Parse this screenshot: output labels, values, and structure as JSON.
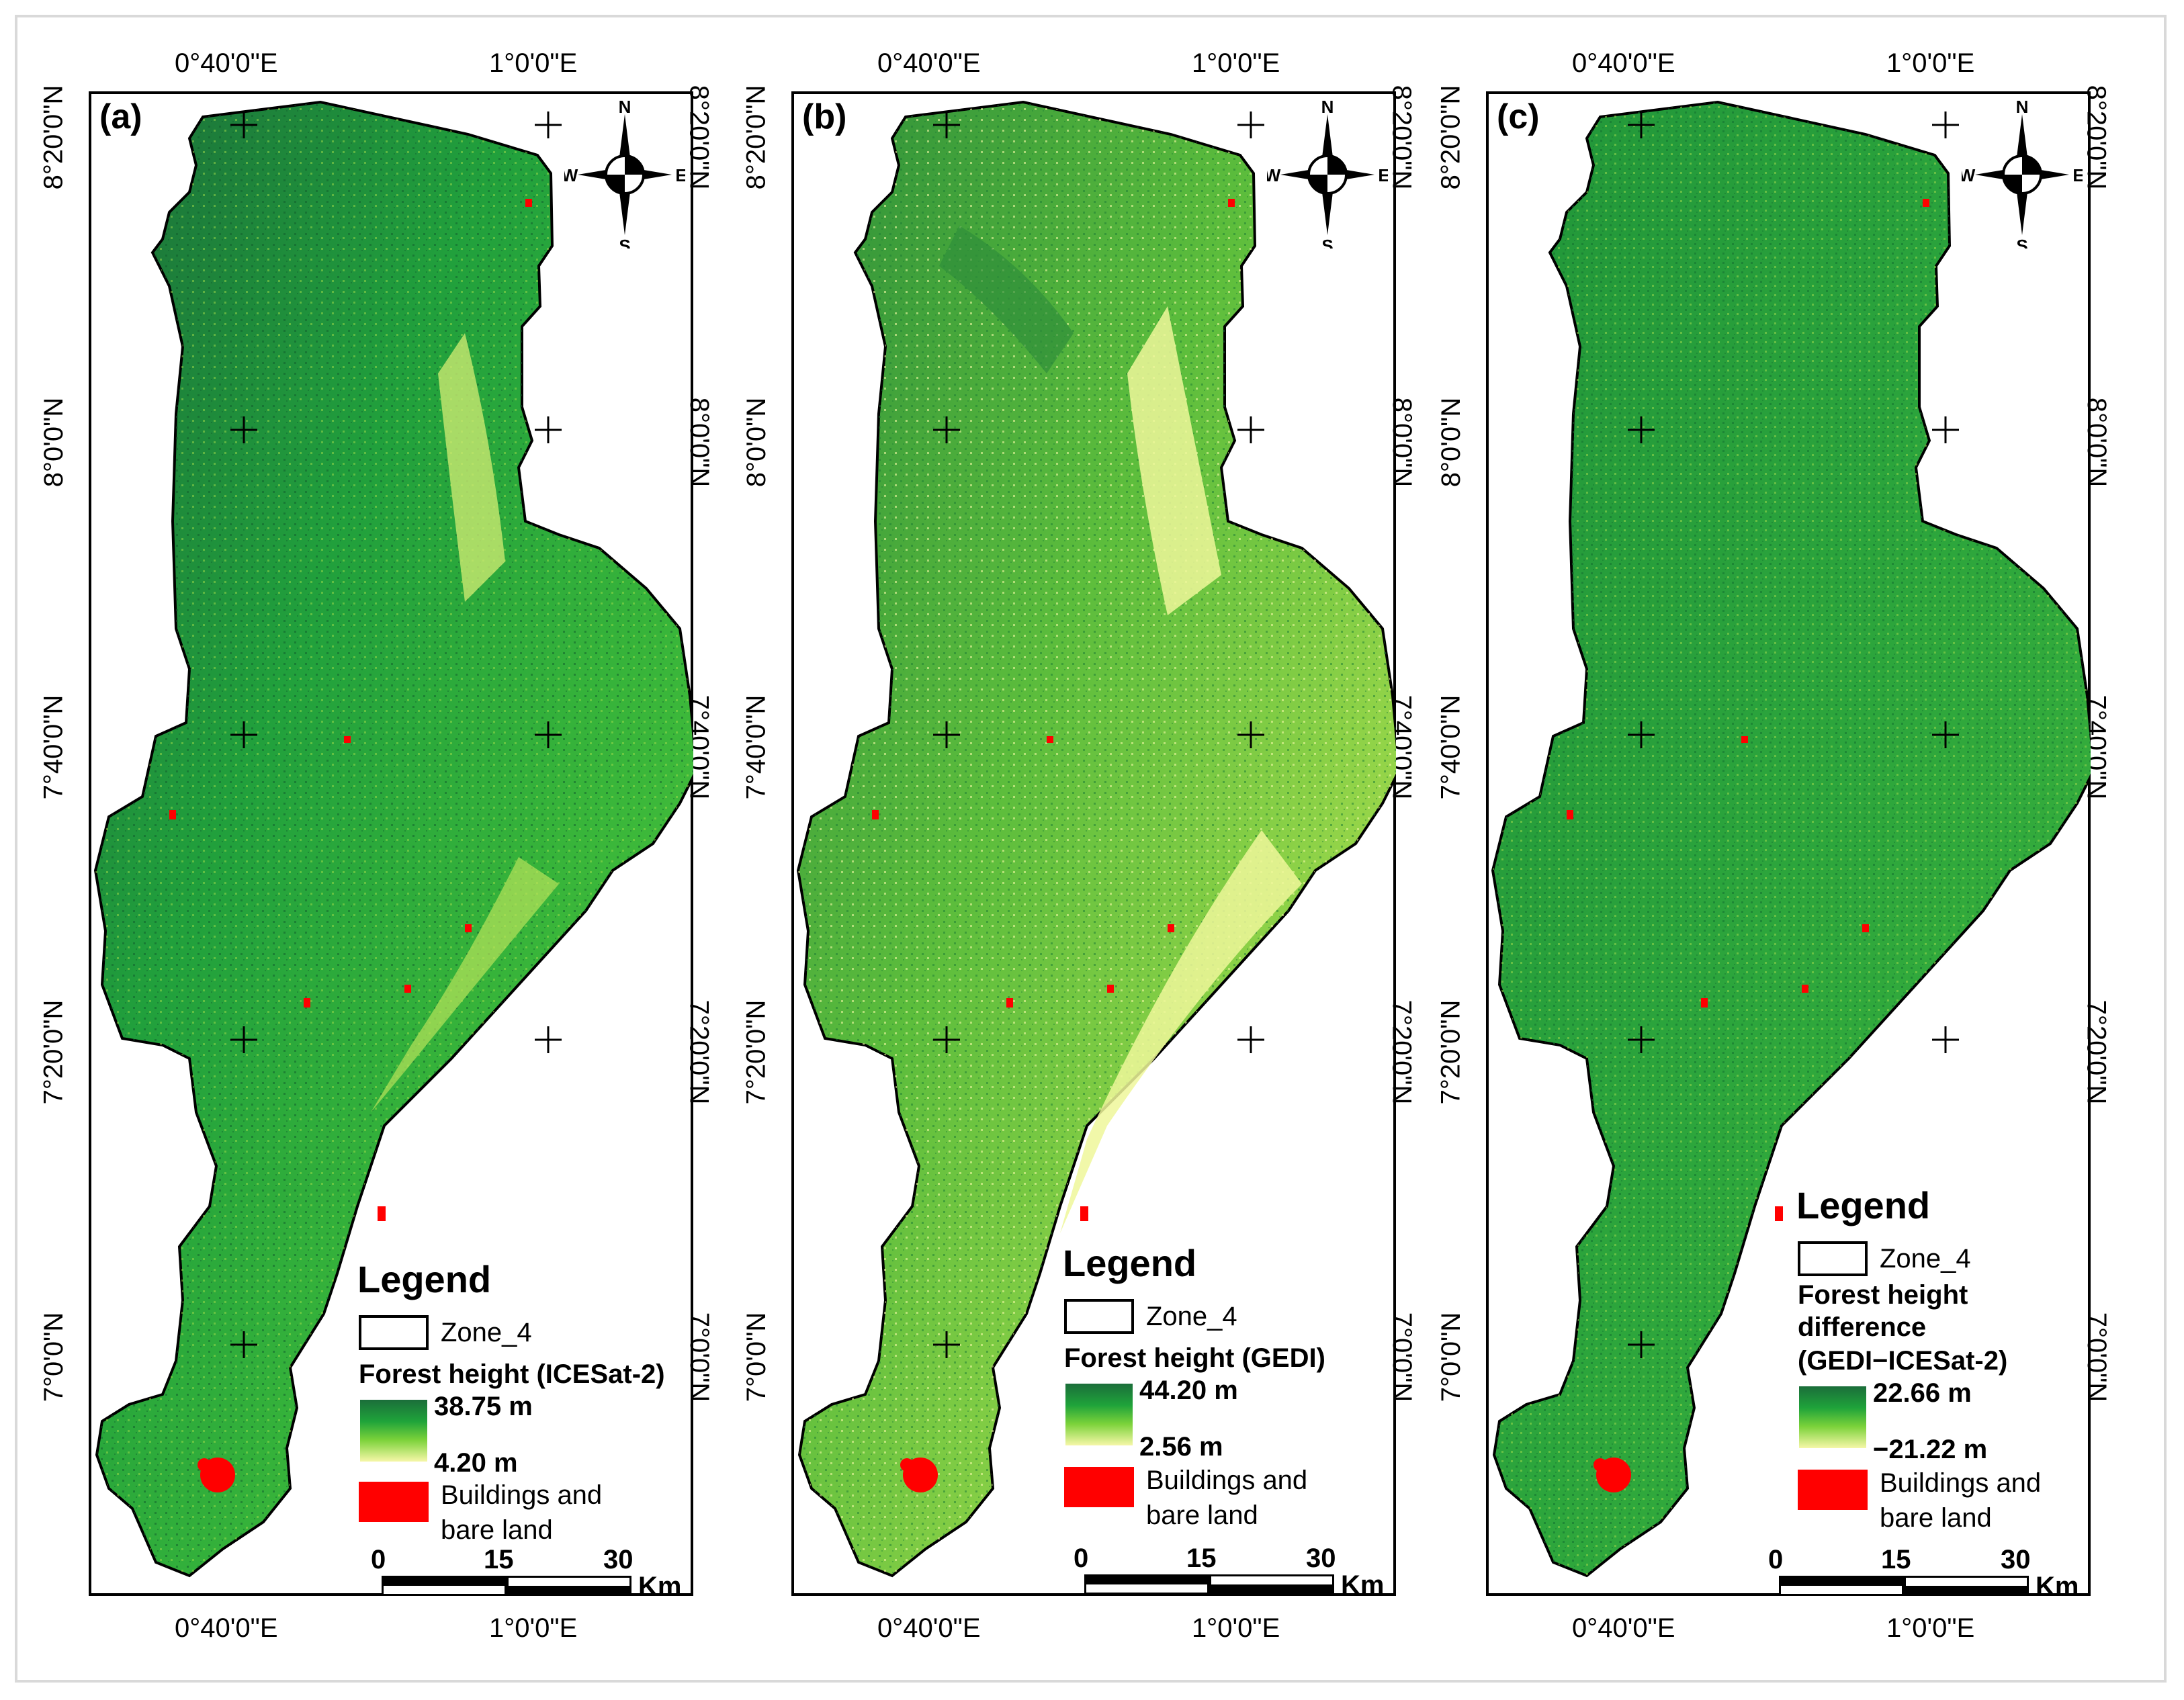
{
  "panels": [
    {
      "id": "a",
      "label": "(a)",
      "legend_title": "Legend",
      "zone_label": "Zone_4",
      "variable_label": "Forest height (ICESat-2)",
      "max_label": "38.75 m",
      "min_label": "4.20 m",
      "buildings_label_1": "Buildings and",
      "buildings_label_2": "bare land"
    },
    {
      "id": "b",
      "label": "(b)",
      "legend_title": "Legend",
      "zone_label": "Zone_4",
      "variable_label": "Forest height (GEDI)",
      "max_label": "44.20 m",
      "min_label": "2.56 m",
      "buildings_label_1": "Buildings and",
      "buildings_label_2": "bare land"
    },
    {
      "id": "c",
      "label": "(c)",
      "legend_title": "Legend",
      "zone_label": "Zone_4",
      "variable_label_1": "Forest height",
      "variable_label_2": "difference",
      "variable_label_3": "(GEDI−ICESat-2)",
      "max_label": "22.66 m",
      "min_label": "−21.22 m",
      "buildings_label_1": "Buildings and",
      "buildings_label_2": "bare land"
    }
  ],
  "graticule": {
    "lon_labels": [
      "0°40'0\"E",
      "1°0'0\"E"
    ],
    "lat_labels": [
      "8°20'0\"N",
      "8°0'0\"N",
      "7°40'0\"N",
      "7°20'0\"N",
      "7°0'0\"N"
    ]
  },
  "north_arrow": {
    "n": "N",
    "s": "S",
    "e": "E",
    "w": "W"
  },
  "scale": {
    "ticks": [
      "0",
      "15",
      "30"
    ],
    "unit": "Km"
  },
  "colors": {
    "dark_green": "#1b6e3a",
    "green": "#1fa33a",
    "light_green": "#7bd23a",
    "yellow": "#f6f7a8",
    "buildings": "#ff0000"
  }
}
